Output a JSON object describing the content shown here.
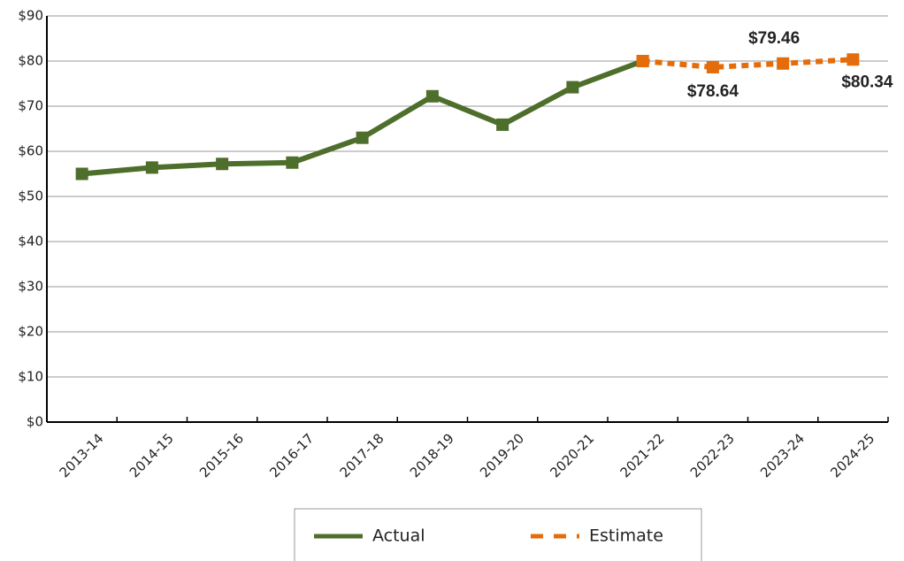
{
  "chart_data": {
    "type": "line",
    "categories": [
      "2013-14",
      "2014-15",
      "2015-16",
      "2016-17",
      "2017-18",
      "2018-19",
      "2019-20",
      "2020-21",
      "2021-22",
      "2022-23",
      "2023-24",
      "2024-25"
    ],
    "series": [
      {
        "name": "Actual",
        "color": "#4e6e2c",
        "dashed": false,
        "values": [
          55,
          56.4,
          57.2,
          57.5,
          63,
          72.2,
          65.9,
          74.2,
          80,
          null,
          null,
          null
        ]
      },
      {
        "name": "Estimate",
        "color": "#e46c0a",
        "dashed": true,
        "values": [
          null,
          null,
          null,
          null,
          null,
          null,
          null,
          null,
          80,
          78.64,
          79.46,
          80.34
        ],
        "value_labels": [
          null,
          null,
          null,
          null,
          null,
          null,
          null,
          null,
          null,
          "$78.64",
          "$79.46",
          "$80.34"
        ]
      }
    ],
    "ylim": [
      0,
      90
    ],
    "yticks": [
      {
        "value": 0,
        "label": "$0"
      },
      {
        "value": 10,
        "label": "$10"
      },
      {
        "value": 20,
        "label": "$20"
      },
      {
        "value": 30,
        "label": "$30"
      },
      {
        "value": 40,
        "label": "$40"
      },
      {
        "value": 50,
        "label": "$50"
      },
      {
        "value": 60,
        "label": "$60"
      },
      {
        "value": 70,
        "label": "$70"
      },
      {
        "value": 80,
        "label": "$80"
      },
      {
        "value": 90,
        "label": "$90"
      }
    ],
    "grid": true
  }
}
